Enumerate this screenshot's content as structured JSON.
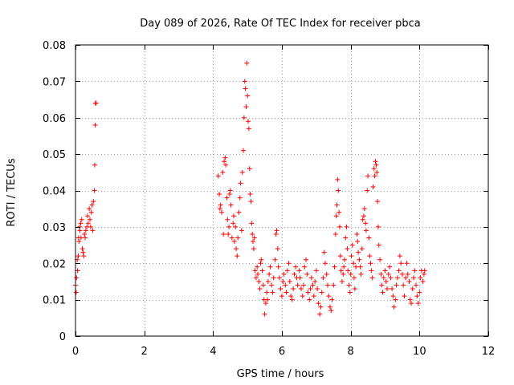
{
  "chart_data": {
    "type": "scatter",
    "title": "Day 089 of 2026, Rate Of TEC Index for receiver pbca",
    "xlabel": "GPS time / hours",
    "ylabel": "ROTI / TECUs",
    "xlim": [
      0,
      12
    ],
    "ylim": [
      0,
      0.08
    ],
    "x_ticks": [
      0,
      2,
      4,
      6,
      8,
      10,
      12
    ],
    "y_ticks": [
      0,
      0.01,
      0.02,
      0.03,
      0.04,
      0.05,
      0.06,
      0.07,
      0.08
    ],
    "x_tick_labels": [
      "0",
      "2",
      "4",
      "6",
      "8",
      "10",
      "12"
    ],
    "y_tick_labels": [
      "0",
      "0.01",
      "0.02",
      "0.03",
      "0.04",
      "0.05",
      "0.06",
      "0.07",
      "0.08"
    ],
    "grid": true,
    "marker": "+",
    "series": [
      {
        "name": "ROTI",
        "color": "#ff0000",
        "points": [
          [
            0.0,
            0.014
          ],
          [
            0.02,
            0.012
          ],
          [
            0.03,
            0.016
          ],
          [
            0.05,
            0.021
          ],
          [
            0.06,
            0.018
          ],
          [
            0.08,
            0.022
          ],
          [
            0.09,
            0.027
          ],
          [
            0.1,
            0.026
          ],
          [
            0.12,
            0.03
          ],
          [
            0.13,
            0.029
          ],
          [
            0.15,
            0.031
          ],
          [
            0.16,
            0.027
          ],
          [
            0.18,
            0.032
          ],
          [
            0.2,
            0.024
          ],
          [
            0.22,
            0.023
          ],
          [
            0.24,
            0.022
          ],
          [
            0.26,
            0.028
          ],
          [
            0.28,
            0.027
          ],
          [
            0.3,
            0.029
          ],
          [
            0.33,
            0.03
          ],
          [
            0.35,
            0.033
          ],
          [
            0.37,
            0.031
          ],
          [
            0.4,
            0.035
          ],
          [
            0.42,
            0.032
          ],
          [
            0.44,
            0.03
          ],
          [
            0.46,
            0.034
          ],
          [
            0.48,
            0.036
          ],
          [
            0.5,
            0.029
          ],
          [
            0.52,
            0.037
          ],
          [
            0.55,
            0.04
          ],
          [
            0.56,
            0.047
          ],
          [
            0.57,
            0.058
          ],
          [
            0.58,
            0.064
          ],
          [
            0.6,
            0.064
          ],
          [
            4.15,
            0.044
          ],
          [
            4.18,
            0.039
          ],
          [
            4.2,
            0.035
          ],
          [
            4.22,
            0.036
          ],
          [
            4.25,
            0.034
          ],
          [
            4.28,
            0.045
          ],
          [
            4.3,
            0.028
          ],
          [
            4.32,
            0.048
          ],
          [
            4.35,
            0.049
          ],
          [
            4.37,
            0.047
          ],
          [
            4.4,
            0.038
          ],
          [
            4.42,
            0.032
          ],
          [
            4.44,
            0.028
          ],
          [
            4.46,
            0.03
          ],
          [
            4.48,
            0.039
          ],
          [
            4.5,
            0.04
          ],
          [
            4.52,
            0.036
          ],
          [
            4.55,
            0.027
          ],
          [
            4.58,
            0.031
          ],
          [
            4.6,
            0.033
          ],
          [
            4.62,
            0.026
          ],
          [
            4.65,
            0.03
          ],
          [
            4.67,
            0.024
          ],
          [
            4.7,
            0.022
          ],
          [
            4.72,
            0.027
          ],
          [
            4.75,
            0.034
          ],
          [
            4.78,
            0.038
          ],
          [
            4.8,
            0.042
          ],
          [
            4.83,
            0.029
          ],
          [
            4.85,
            0.045
          ],
          [
            4.88,
            0.051
          ],
          [
            4.9,
            0.06
          ],
          [
            4.92,
            0.07
          ],
          [
            4.94,
            0.068
          ],
          [
            4.96,
            0.063
          ],
          [
            4.98,
            0.075
          ],
          [
            5.0,
            0.066
          ],
          [
            5.02,
            0.059
          ],
          [
            5.04,
            0.057
          ],
          [
            5.06,
            0.046
          ],
          [
            5.08,
            0.039
          ],
          [
            5.1,
            0.037
          ],
          [
            5.12,
            0.031
          ],
          [
            5.14,
            0.028
          ],
          [
            5.16,
            0.026
          ],
          [
            5.18,
            0.024
          ],
          [
            5.2,
            0.027
          ],
          [
            5.22,
            0.018
          ],
          [
            5.25,
            0.016
          ],
          [
            5.28,
            0.019
          ],
          [
            5.3,
            0.017
          ],
          [
            5.33,
            0.015
          ],
          [
            5.36,
            0.013
          ],
          [
            5.38,
            0.02
          ],
          [
            5.4,
            0.021
          ],
          [
            5.43,
            0.018
          ],
          [
            5.46,
            0.014
          ],
          [
            5.48,
            0.01
          ],
          [
            5.5,
            0.006
          ],
          [
            5.53,
            0.009
          ],
          [
            5.56,
            0.012
          ],
          [
            5.58,
            0.01
          ],
          [
            5.6,
            0.015
          ],
          [
            5.63,
            0.017
          ],
          [
            5.66,
            0.019
          ],
          [
            5.7,
            0.014
          ],
          [
            5.73,
            0.012
          ],
          [
            5.76,
            0.016
          ],
          [
            5.8,
            0.021
          ],
          [
            5.83,
            0.028
          ],
          [
            5.85,
            0.029
          ],
          [
            5.88,
            0.024
          ],
          [
            5.9,
            0.019
          ],
          [
            5.93,
            0.016
          ],
          [
            5.96,
            0.013
          ],
          [
            6.0,
            0.011
          ],
          [
            6.03,
            0.015
          ],
          [
            6.06,
            0.017
          ],
          [
            6.1,
            0.014
          ],
          [
            6.13,
            0.012
          ],
          [
            6.16,
            0.018
          ],
          [
            6.2,
            0.02
          ],
          [
            6.23,
            0.015
          ],
          [
            6.26,
            0.011
          ],
          [
            6.3,
            0.01
          ],
          [
            6.33,
            0.013
          ],
          [
            6.36,
            0.017
          ],
          [
            6.4,
            0.019
          ],
          [
            6.43,
            0.016
          ],
          [
            6.46,
            0.014
          ],
          [
            6.5,
            0.018
          ],
          [
            6.53,
            0.016
          ],
          [
            6.56,
            0.013
          ],
          [
            6.6,
            0.011
          ],
          [
            6.63,
            0.014
          ],
          [
            6.66,
            0.019
          ],
          [
            6.7,
            0.021
          ],
          [
            6.73,
            0.017
          ],
          [
            6.76,
            0.012
          ],
          [
            6.8,
            0.01
          ],
          [
            6.83,
            0.013
          ],
          [
            6.86,
            0.016
          ],
          [
            6.9,
            0.014
          ],
          [
            6.93,
            0.011
          ],
          [
            6.96,
            0.015
          ],
          [
            7.0,
            0.018
          ],
          [
            7.03,
            0.013
          ],
          [
            7.06,
            0.009
          ],
          [
            7.1,
            0.006
          ],
          [
            7.13,
            0.008
          ],
          [
            7.16,
            0.012
          ],
          [
            7.2,
            0.016
          ],
          [
            7.23,
            0.023
          ],
          [
            7.26,
            0.02
          ],
          [
            7.3,
            0.017
          ],
          [
            7.33,
            0.014
          ],
          [
            7.36,
            0.011
          ],
          [
            7.4,
            0.008
          ],
          [
            7.43,
            0.007
          ],
          [
            7.46,
            0.01
          ],
          [
            7.5,
            0.014
          ],
          [
            7.53,
            0.019
          ],
          [
            7.56,
            0.028
          ],
          [
            7.58,
            0.033
          ],
          [
            7.6,
            0.036
          ],
          [
            7.62,
            0.043
          ],
          [
            7.64,
            0.04
          ],
          [
            7.66,
            0.034
          ],
          [
            7.68,
            0.03
          ],
          [
            7.7,
            0.022
          ],
          [
            7.72,
            0.018
          ],
          [
            7.75,
            0.015
          ],
          [
            7.78,
            0.017
          ],
          [
            7.8,
            0.019
          ],
          [
            7.82,
            0.021
          ],
          [
            7.85,
            0.027
          ],
          [
            7.88,
            0.03
          ],
          [
            7.9,
            0.024
          ],
          [
            7.92,
            0.018
          ],
          [
            7.95,
            0.014
          ],
          [
            7.98,
            0.012
          ],
          [
            8.0,
            0.017
          ],
          [
            8.02,
            0.022
          ],
          [
            8.05,
            0.025
          ],
          [
            8.08,
            0.02
          ],
          [
            8.1,
            0.016
          ],
          [
            8.12,
            0.013
          ],
          [
            8.15,
            0.019
          ],
          [
            8.18,
            0.028
          ],
          [
            8.2,
            0.026
          ],
          [
            8.22,
            0.023
          ],
          [
            8.25,
            0.021
          ],
          [
            8.28,
            0.019
          ],
          [
            8.3,
            0.017
          ],
          [
            8.33,
            0.024
          ],
          [
            8.35,
            0.032
          ],
          [
            8.38,
            0.033
          ],
          [
            8.4,
            0.035
          ],
          [
            8.43,
            0.031
          ],
          [
            8.45,
            0.029
          ],
          [
            8.48,
            0.04
          ],
          [
            8.5,
            0.044
          ],
          [
            8.53,
            0.027
          ],
          [
            8.55,
            0.022
          ],
          [
            8.58,
            0.02
          ],
          [
            8.6,
            0.018
          ],
          [
            8.63,
            0.016
          ],
          [
            8.65,
            0.041
          ],
          [
            8.68,
            0.046
          ],
          [
            8.7,
            0.044
          ],
          [
            8.72,
            0.048
          ],
          [
            8.74,
            0.047
          ],
          [
            8.76,
            0.045
          ],
          [
            8.78,
            0.037
          ],
          [
            8.8,
            0.03
          ],
          [
            8.82,
            0.025
          ],
          [
            8.85,
            0.021
          ],
          [
            8.88,
            0.017
          ],
          [
            8.9,
            0.014
          ],
          [
            8.93,
            0.012
          ],
          [
            8.96,
            0.016
          ],
          [
            9.0,
            0.018
          ],
          [
            9.03,
            0.015
          ],
          [
            9.06,
            0.013
          ],
          [
            9.1,
            0.017
          ],
          [
            9.13,
            0.019
          ],
          [
            9.16,
            0.016
          ],
          [
            9.2,
            0.013
          ],
          [
            9.23,
            0.011
          ],
          [
            9.26,
            0.008
          ],
          [
            9.3,
            0.01
          ],
          [
            9.33,
            0.014
          ],
          [
            9.36,
            0.016
          ],
          [
            9.4,
            0.018
          ],
          [
            9.43,
            0.022
          ],
          [
            9.46,
            0.02
          ],
          [
            9.5,
            0.017
          ],
          [
            9.53,
            0.014
          ],
          [
            9.56,
            0.011
          ],
          [
            9.6,
            0.016
          ],
          [
            9.63,
            0.02
          ],
          [
            9.66,
            0.017
          ],
          [
            9.7,
            0.015
          ],
          [
            9.73,
            0.01
          ],
          [
            9.76,
            0.009
          ],
          [
            9.8,
            0.013
          ],
          [
            9.83,
            0.016
          ],
          [
            9.86,
            0.018
          ],
          [
            9.9,
            0.014
          ],
          [
            9.93,
            0.011
          ],
          [
            9.96,
            0.009
          ],
          [
            10.0,
            0.012
          ],
          [
            10.03,
            0.016
          ],
          [
            10.06,
            0.018
          ],
          [
            10.1,
            0.015
          ],
          [
            10.13,
            0.017
          ],
          [
            10.15,
            0.018
          ]
        ]
      }
    ]
  }
}
